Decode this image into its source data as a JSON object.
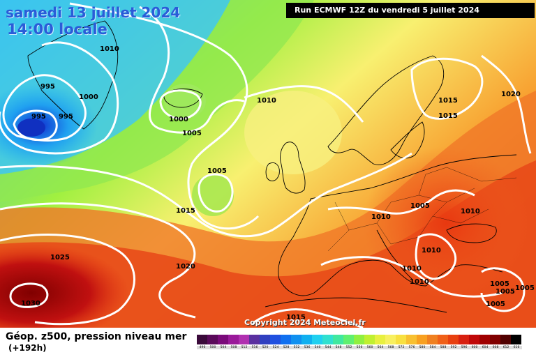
{
  "header": {
    "date": "samedi 13 juillet 2024",
    "time": "14:00 locale",
    "run": "Run ECMWF 12Z du vendredi 5 juillet 2024"
  },
  "footer": {
    "copyright": "Copyright 2024 Meteociel.fr",
    "legend_title": "Géop. z500, pression niveau mer",
    "legend_sub": "(+192h)"
  },
  "isobar_labels": [
    "995",
    "995",
    "995",
    "1000",
    "1000",
    "1005",
    "1005",
    "1010",
    "1010",
    "1010",
    "1010",
    "1010",
    "1010",
    "1015",
    "1015",
    "1015",
    "1015",
    "1020",
    "1020",
    "1025",
    "1030",
    "1005",
    "1005",
    "1005",
    "1005",
    "1010",
    "1005"
  ],
  "scale": {
    "values": [
      "496",
      "500",
      "504",
      "508",
      "512",
      "516",
      "520",
      "524",
      "528",
      "532",
      "536",
      "540",
      "544",
      "548",
      "552",
      "556",
      "560",
      "564",
      "568",
      "572",
      "576",
      "580",
      "584",
      "588",
      "592",
      "596",
      "600",
      "604",
      "608",
      "612",
      "616"
    ],
    "colors": [
      "#3a0a3a",
      "#5a0a5a",
      "#7a0a7a",
      "#9a1a9a",
      "#b030b0",
      "#5a30a0",
      "#3040c0",
      "#2050e0",
      "#1070f0",
      "#1090f0",
      "#10b0f0",
      "#20d0f0",
      "#30e0d0",
      "#40e8a0",
      "#60f070",
      "#90f040",
      "#c0f030",
      "#e8f040",
      "#f8f060",
      "#f8e040",
      "#f8c030",
      "#f8a020",
      "#f08020",
      "#f06018",
      "#e84010",
      "#d82010",
      "#c00808",
      "#a00000",
      "#800000",
      "#500000",
      "#000000"
    ]
  },
  "colors": {
    "title": "#2a5cd8",
    "isobar": "#ffffff"
  }
}
